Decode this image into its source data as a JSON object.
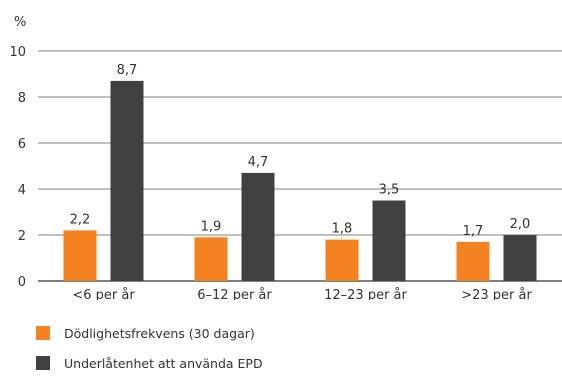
{
  "chart_data": {
    "type": "bar",
    "unit_label": "%",
    "categories": [
      "<6 per år",
      "6–12 per år",
      "12–23 per år",
      ">23 per år"
    ],
    "series": [
      {
        "name": "Dödlighetsfrekvens (30 dagar)",
        "color": "#f58220",
        "values": [
          2.2,
          1.9,
          1.8,
          1.7
        ],
        "labels": [
          "2,2",
          "1,9",
          "1,8",
          "1,7"
        ]
      },
      {
        "name": "Underlåtenhet att använda EPD",
        "color": "#414141",
        "values": [
          8.7,
          4.7,
          3.5,
          2.0
        ],
        "labels": [
          "8,7",
          "4,7",
          "3,5",
          "2,0"
        ]
      }
    ],
    "ylim": [
      0,
      10
    ],
    "yticks": [
      0,
      2,
      4,
      6,
      8,
      10
    ],
    "grid": true,
    "legend_position": "bottom-left"
  }
}
